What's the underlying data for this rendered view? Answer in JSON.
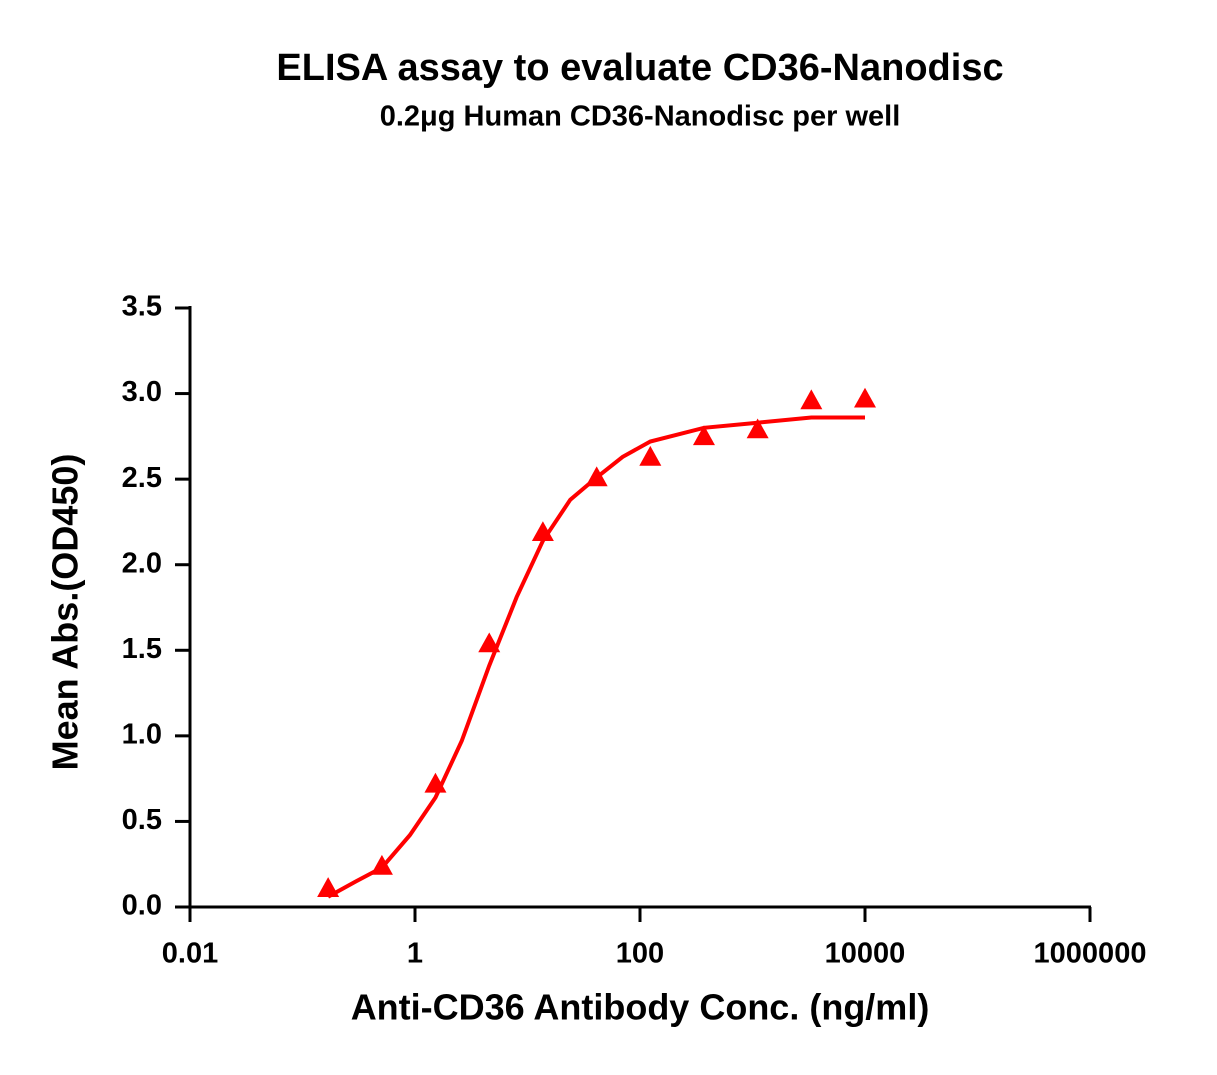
{
  "chart_data": {
    "type": "scatter",
    "title": "ELISA assay to evaluate CD36-Nanodisc",
    "subtitle": "0.2μg Human CD36-Nanodisc per well",
    "x_label": "Anti-CD36 Antibody Conc. (ng/ml)",
    "y_label": "Mean Abs.(OD450)",
    "x_scale": "log",
    "xlim": [
      0.01,
      1000000
    ],
    "xticks": [
      0.01,
      1,
      100,
      10000,
      1000000
    ],
    "ylim": [
      0,
      3.5
    ],
    "yticks": [
      {
        "value": 0,
        "label": "0.0"
      },
      0.5,
      {
        "value": 1,
        "label": "1.0"
      },
      1.5,
      {
        "value": 2,
        "label": "2.0"
      },
      2.5,
      {
        "value": 3,
        "label": "3.0"
      },
      3.5
    ],
    "points": {
      "color": "#ff0000",
      "x": [
        0.169,
        0.508,
        1.52,
        4.57,
        13.7,
        41.2,
        123.5,
        370.4,
        1111.1,
        3333.3,
        10000
      ],
      "values": [
        0.11,
        0.24,
        0.72,
        1.54,
        2.19,
        2.51,
        2.63,
        2.75,
        2.79,
        2.96,
        2.97
      ]
    },
    "curve": {
      "color": "#ff0000",
      "x": [
        0.169,
        0.3,
        0.508,
        0.9,
        1.52,
        2.6,
        4.57,
        8,
        13.7,
        24,
        41.2,
        70,
        123.5,
        370.4,
        1111.1,
        3333.3,
        10000
      ],
      "values": [
        0.06,
        0.15,
        0.23,
        0.42,
        0.64,
        0.97,
        1.41,
        1.81,
        2.14,
        2.38,
        2.51,
        2.63,
        2.72,
        2.8,
        2.83,
        2.86,
        2.86
      ]
    }
  }
}
